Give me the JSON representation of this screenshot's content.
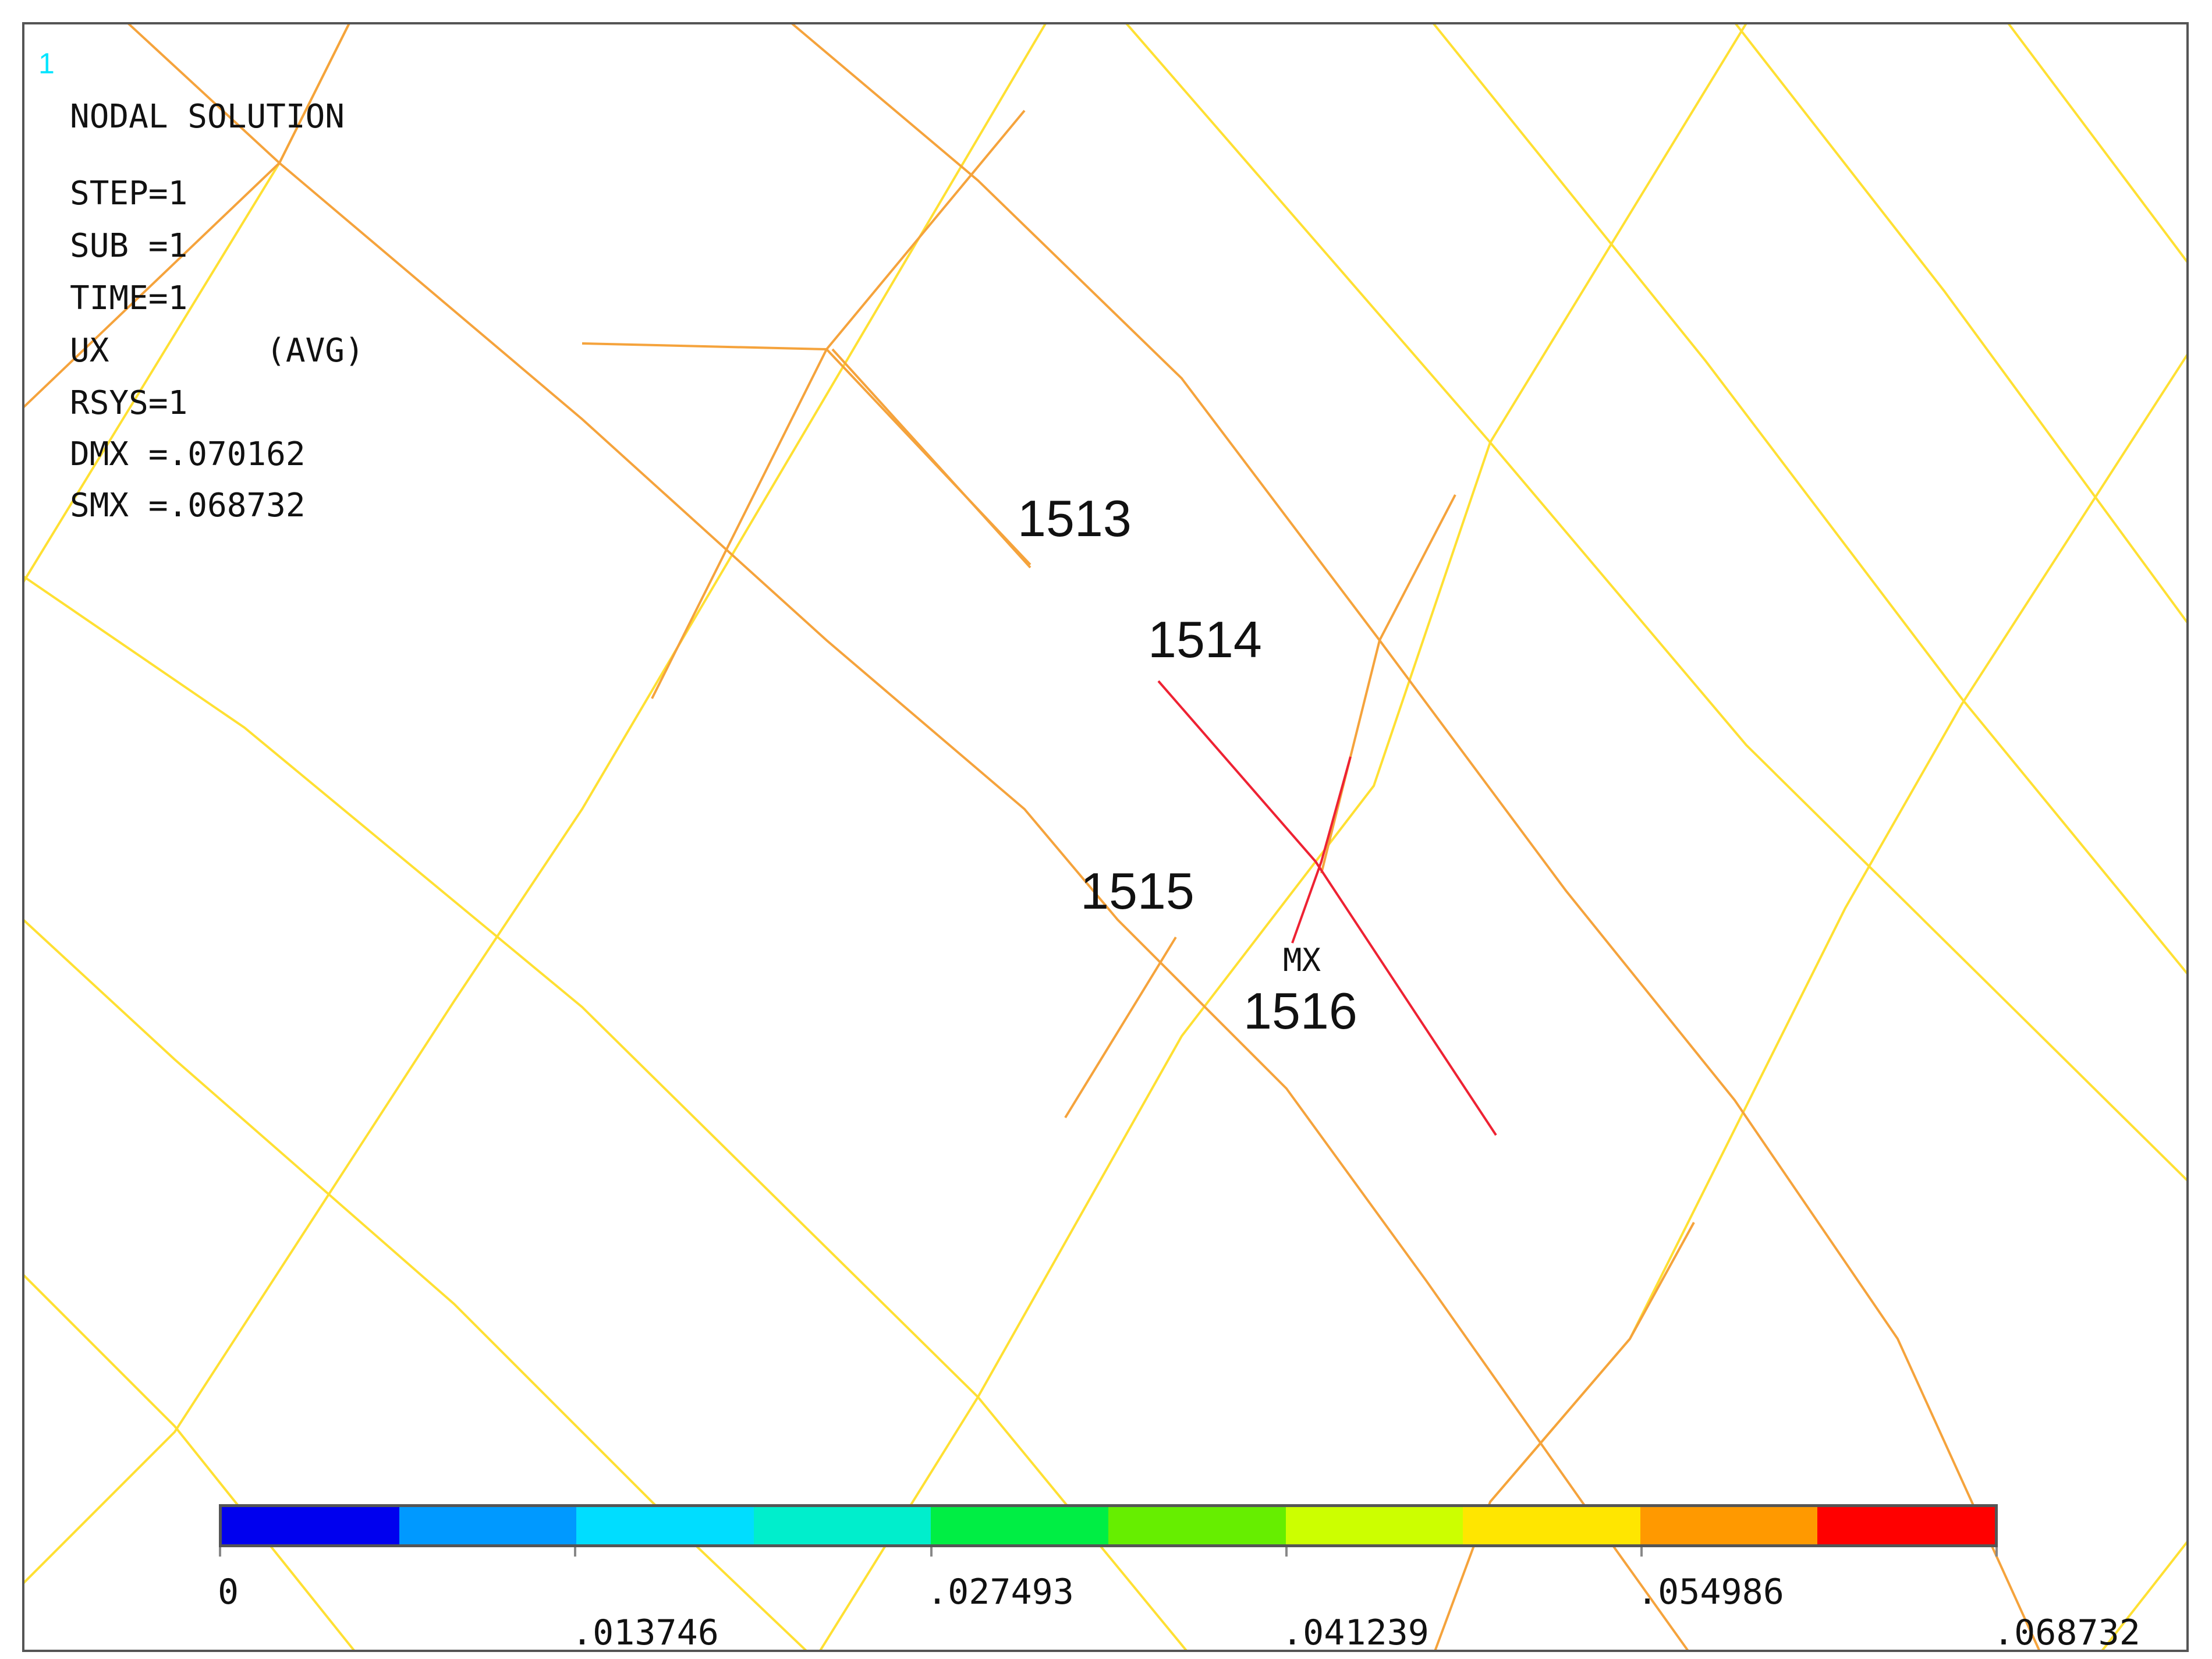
{
  "window_number": "1",
  "info": {
    "title": "NODAL SOLUTION",
    "step": "STEP=1",
    "sub": "SUB =1",
    "time": "TIME=1",
    "quantity": "UX        (AVG)",
    "rsys": "RSYS=1",
    "dmx": "DMX =.070162",
    "smx": "SMX =.068732"
  },
  "node_labels": {
    "n1513": "1513",
    "n1514": "1514",
    "n1515": "1515",
    "n1516": "1516"
  },
  "max_marker": "MX",
  "legend": {
    "colors": [
      "#0000ee",
      "#0099ff",
      "#00ddff",
      "#00eecc",
      "#00ee44",
      "#66ee00",
      "#ccff00",
      "#ffe600",
      "#ff9900",
      "#ff0000"
    ],
    "ticks": [
      "0",
      ".013746",
      ".027493",
      ".041239",
      ".054986",
      ".068732"
    ]
  },
  "line_colors": {
    "yellow": "#ffe033",
    "orange": "#f5a33c",
    "red": "#ee2233"
  }
}
